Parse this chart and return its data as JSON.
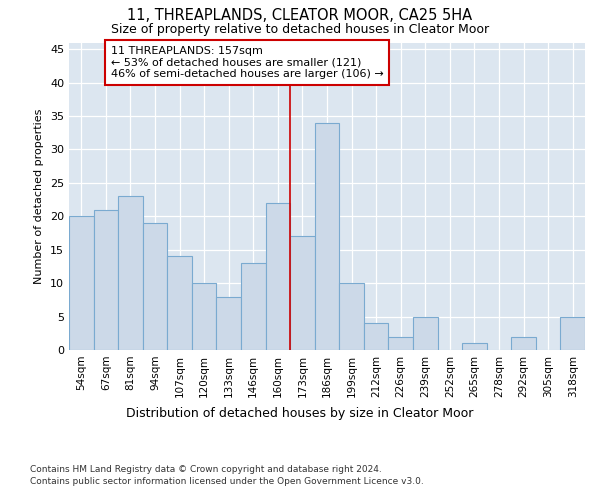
{
  "title": "11, THREAPLANDS, CLEATOR MOOR, CA25 5HA",
  "subtitle": "Size of property relative to detached houses in Cleator Moor",
  "xlabel": "Distribution of detached houses by size in Cleator Moor",
  "ylabel": "Number of detached properties",
  "categories": [
    "54sqm",
    "67sqm",
    "81sqm",
    "94sqm",
    "107sqm",
    "120sqm",
    "133sqm",
    "146sqm",
    "160sqm",
    "173sqm",
    "186sqm",
    "199sqm",
    "212sqm",
    "226sqm",
    "239sqm",
    "252sqm",
    "265sqm",
    "278sqm",
    "292sqm",
    "305sqm",
    "318sqm"
  ],
  "values": [
    20,
    21,
    23,
    19,
    14,
    10,
    8,
    13,
    22,
    17,
    34,
    10,
    4,
    2,
    5,
    0,
    1,
    0,
    2,
    0,
    5
  ],
  "bar_color": "#ccd9e8",
  "bar_edge_color": "#7aaad0",
  "background_color": "#dce6f0",
  "property_label": "11 THREAPLANDS: 157sqm",
  "annotation_line1": "← 53% of detached houses are smaller (121)",
  "annotation_line2": "46% of semi-detached houses are larger (106) →",
  "vline_color": "#cc0000",
  "vline_position": 8.5,
  "ylim": [
    0,
    46
  ],
  "yticks": [
    0,
    5,
    10,
    15,
    20,
    25,
    30,
    35,
    40,
    45
  ],
  "footnote1": "Contains HM Land Registry data © Crown copyright and database right 2024.",
  "footnote2": "Contains public sector information licensed under the Open Government Licence v3.0."
}
